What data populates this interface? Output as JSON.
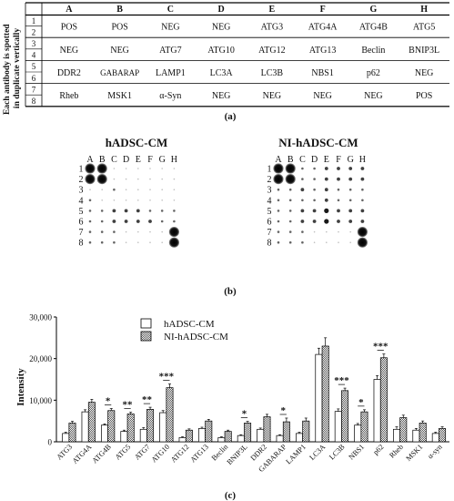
{
  "panel_a": {
    "row_header": [
      "Each antibody is spotted",
      "in duplicate vertically"
    ],
    "columns": [
      "A",
      "B",
      "C",
      "D",
      "E",
      "F",
      "G",
      "H"
    ],
    "row_pairs": [
      "1",
      "2",
      "3",
      "4",
      "5",
      "6",
      "7",
      "8"
    ],
    "cells": [
      [
        "POS",
        "POS",
        "NEG",
        "NEG",
        "ATG3",
        "ATG4A",
        "ATG4B",
        "ATG5"
      ],
      [
        "NEG",
        "NEG",
        "ATG7",
        "ATG10",
        "ATG12",
        "ATG13",
        "Beclin",
        "BNIP3L"
      ],
      [
        "DDR2",
        "GABARAP",
        "LAMP1",
        "LC3A",
        "LC3B",
        "NBS1",
        "p62",
        "NEG"
      ],
      [
        "Rheb",
        "MSK1",
        "α-Syn",
        "NEG",
        "NEG",
        "NEG",
        "NEG",
        "POS"
      ]
    ],
    "label": "(a)"
  },
  "panel_b": {
    "blots": [
      {
        "title": "hADSC-CM"
      },
      {
        "title": "NI-hADSC-CM"
      }
    ],
    "col_letters": [
      "A",
      "B",
      "C",
      "D",
      "E",
      "F",
      "G",
      "H"
    ],
    "row_numbers": [
      "1",
      "2",
      "3",
      "4",
      "5",
      "6",
      "7",
      "8"
    ],
    "label": "(b)"
  },
  "panel_c": {
    "label": "(c)",
    "chart_data": {
      "type": "bar",
      "ylabel": "Intensity",
      "xlabel": "",
      "ylim": [
        0,
        30000
      ],
      "yticks": [
        "0",
        "10,000",
        "20,000",
        "30,000"
      ],
      "legend_position": "top-left",
      "categories": [
        "ATG3",
        "ATG4A",
        "ATG4B",
        "ATG5",
        "ATG7",
        "ATG10",
        "ATG12",
        "ATG13",
        "Beclin",
        "BNIP3L",
        "DDR2",
        "GABARAP",
        "LAMP1",
        "LC3A",
        "LC3B",
        "NBS1",
        "p62",
        "Rheb",
        "MSK1",
        "α-syn"
      ],
      "series": [
        {
          "name": "hADSC-CM",
          "values": [
            2000,
            7200,
            4000,
            2500,
            3000,
            7000,
            1000,
            3200,
            1000,
            1500,
            3000,
            1500,
            2000,
            21000,
            7300,
            4000,
            15000,
            3000,
            2800,
            2000
          ]
        },
        {
          "name": "NI-hADSC-CM",
          "values": [
            4500,
            9500,
            7500,
            6700,
            7800,
            13000,
            2800,
            5000,
            2500,
            4500,
            6000,
            4800,
            5000,
            23000,
            12300,
            7200,
            20200,
            5800,
            4500,
            3200
          ]
        }
      ],
      "errors": [
        [
          300,
          500,
          300,
          300,
          400,
          500,
          200,
          300,
          200,
          200,
          300,
          200,
          300,
          1500,
          600,
          400,
          900,
          600,
          400,
          300
        ],
        [
          400,
          700,
          500,
          400,
          500,
          900,
          300,
          400,
          300,
          400,
          600,
          900,
          700,
          2000,
          600,
          500,
          900,
          600,
          500,
          400
        ]
      ],
      "significance": [
        "",
        "",
        "*",
        "**",
        "**",
        "***",
        "",
        "",
        "",
        "*",
        "",
        "*",
        "",
        "",
        "***",
        "*",
        "***",
        "",
        "",
        ""
      ]
    }
  }
}
